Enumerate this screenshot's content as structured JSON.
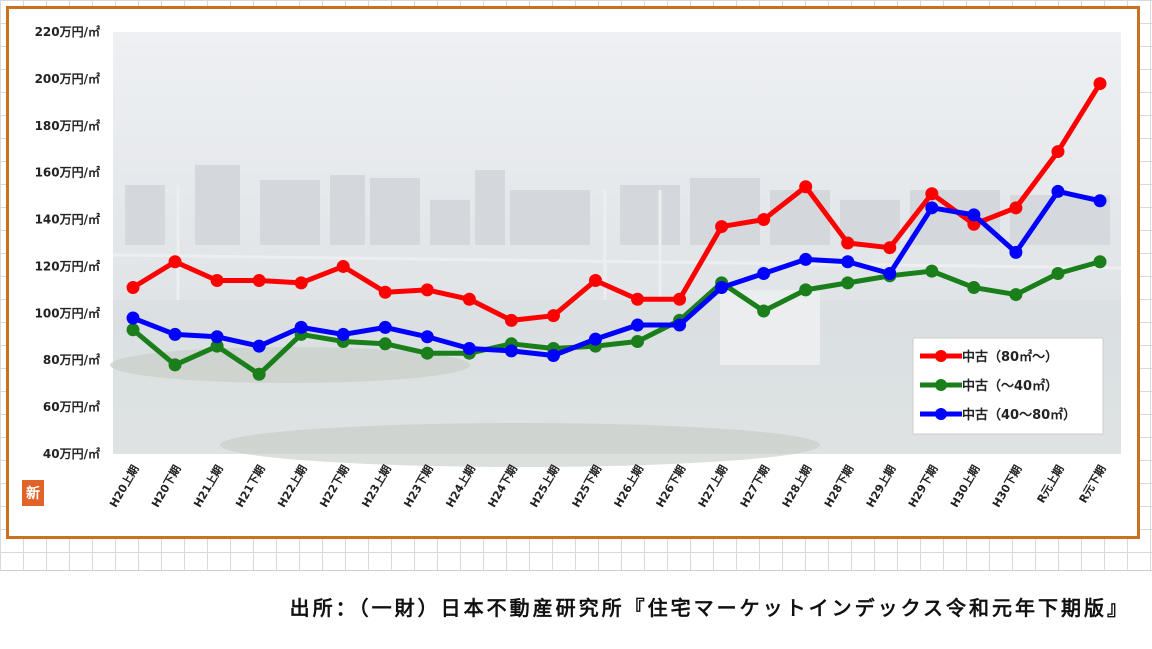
{
  "chart_data": {
    "type": "line",
    "title": "",
    "xlabel": "",
    "ylabel": "",
    "ylim": [
      40,
      220
    ],
    "yticks": [
      "220万円/㎡",
      "200万円/㎡",
      "180万円/㎡",
      "160万円/㎡",
      "140万円/㎡",
      "120万円/㎡",
      "100万円/㎡",
      "80万円/㎡",
      "60万円/㎡",
      "40万円/㎡"
    ],
    "ytick_values": [
      220,
      200,
      180,
      160,
      140,
      120,
      100,
      80,
      60,
      40
    ],
    "categories": [
      "H20上期",
      "H20下期",
      "H21上期",
      "H21下期",
      "H22上期",
      "H22下期",
      "H23上期",
      "H23下期",
      "H24上期",
      "H24下期",
      "H25上期",
      "H25下期",
      "H26上期",
      "H26下期",
      "H27上期",
      "H27下期",
      "H28上期",
      "H28下期",
      "H29上期",
      "H29下期",
      "H30上期",
      "H30下期",
      "R元上期",
      "R元下期"
    ],
    "legend_position": "bottom-right",
    "grid": false,
    "series": [
      {
        "name": "中古（80㎡～）",
        "color": "#ff0000",
        "values": [
          111,
          122,
          114,
          114,
          113,
          120,
          109,
          110,
          106,
          97,
          99,
          114,
          106,
          106,
          137,
          140,
          154,
          130,
          128,
          151,
          138,
          145,
          169,
          198
        ]
      },
      {
        "name": "中古（～40㎡）",
        "color": "#1a7f1a",
        "values": [
          93,
          78,
          86,
          74,
          91,
          88,
          87,
          83,
          83,
          87,
          85,
          86,
          88,
          97,
          113,
          101,
          110,
          113,
          116,
          118,
          111,
          108,
          117,
          122
        ]
      },
      {
        "name": "中古（40～80㎡）",
        "color": "#0000ff",
        "values": [
          98,
          91,
          90,
          86,
          94,
          91,
          94,
          90,
          85,
          84,
          82,
          89,
          95,
          95,
          111,
          117,
          123,
          122,
          117,
          145,
          142,
          126,
          152,
          148
        ]
      }
    ]
  },
  "badge_text": "新",
  "source_text": "出所：（一財）日本不動産研究所『住宅マーケットインデックス令和元年下期版』"
}
